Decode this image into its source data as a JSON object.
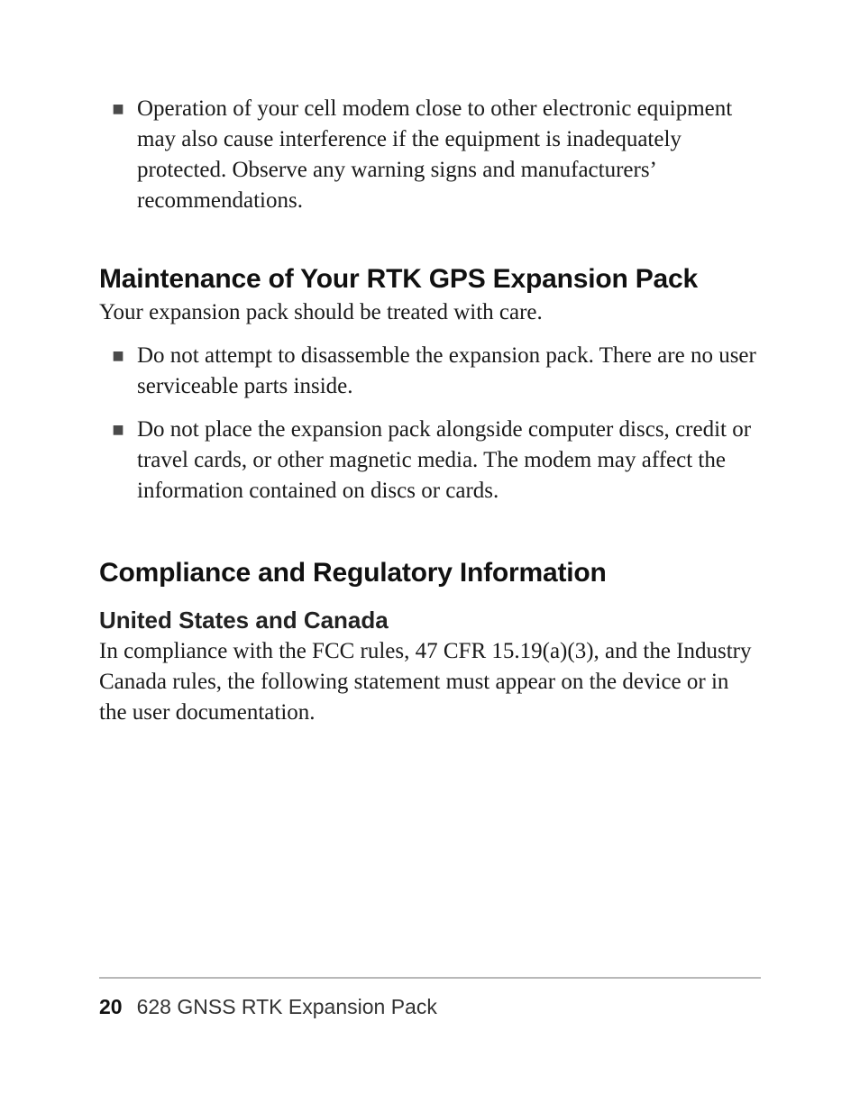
{
  "intro_bullet": "Operation of your cell modem close to other electronic equipment may also cause interference if the equipment is inadequately protected. Observe any warning signs and manufacturers’ recommendations.",
  "maintenance": {
    "heading": "Maintenance of Your RTK GPS Expansion Pack",
    "intro": "Your expansion pack should be treated with care.",
    "bullets": [
      "Do not attempt to disassemble the expansion pack. There are no user serviceable parts inside.",
      "Do not place the expansion pack alongside computer discs, credit or travel cards, or other magnetic media. The modem may affect the information contained on discs or cards."
    ]
  },
  "compliance": {
    "heading": "Compliance and Regulatory Information",
    "subheading": "United States and Canada",
    "body": "In compliance with the FCC rules, 47 CFR 15.19(a)(3), and the Industry Canada rules, the following statement must appear on the device or in the user documentation."
  },
  "footer": {
    "page_number": "20",
    "title": "628 GNSS RTK Expansion Pack"
  },
  "bullet_glyph": "■"
}
